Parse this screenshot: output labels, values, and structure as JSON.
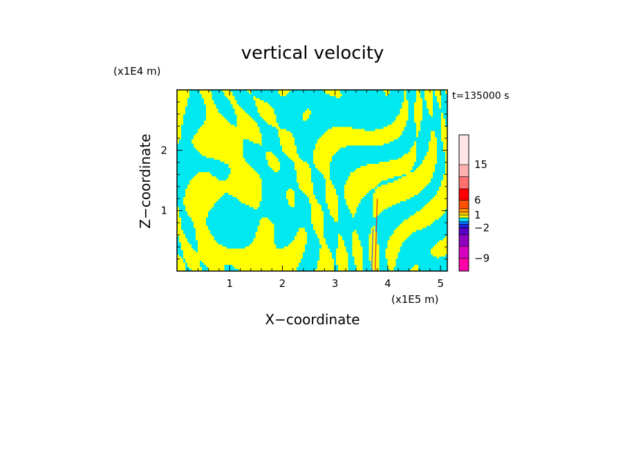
{
  "chart_data": {
    "type": "heatmap",
    "title": "vertical velocity",
    "xlabel": "X−coordinate",
    "ylabel": "Z−coordinate",
    "x_unit": "(x1E5 m)",
    "y_unit": "(x1E4 m)",
    "time_label": "t=135000  s",
    "xlim": [
      0,
      5.13
    ],
    "ylim": [
      0,
      3.0
    ],
    "x_ticks": [
      1,
      2,
      3,
      4,
      5
    ],
    "y_ticks": [
      1,
      2
    ],
    "x_tick_labels": [
      "1",
      "2",
      "3",
      "4",
      "5"
    ],
    "y_tick_labels": [
      "1",
      "2"
    ],
    "field_colors": {
      "negative": "#00e8f0",
      "positive": "#ffff00",
      "strong_positive": "#e8202a",
      "strong_negative": "#3030ff"
    },
    "colorbar": {
      "levels_bottom_to_top": [
        -12,
        -9,
        -6,
        -4,
        -2,
        -1,
        0,
        0.5,
        1,
        2,
        4,
        6,
        9,
        12,
        15,
        20
      ],
      "tick_labels": [
        "15",
        "6",
        "1",
        "−2",
        "−9"
      ],
      "tick_values": [
        15,
        6,
        1,
        -2,
        -9
      ],
      "colors_bottom_to_top": [
        "#ff00a8",
        "#d800c0",
        "#9000c0",
        "#5800c8",
        "#2020e0",
        "#0070ff",
        "#00e8f0",
        "#ffff00",
        "#ffd000",
        "#ff8c00",
        "#ff5000",
        "#ff0000",
        "#ff7070",
        "#ffb0b0",
        "#ffe6e6"
      ]
    }
  }
}
